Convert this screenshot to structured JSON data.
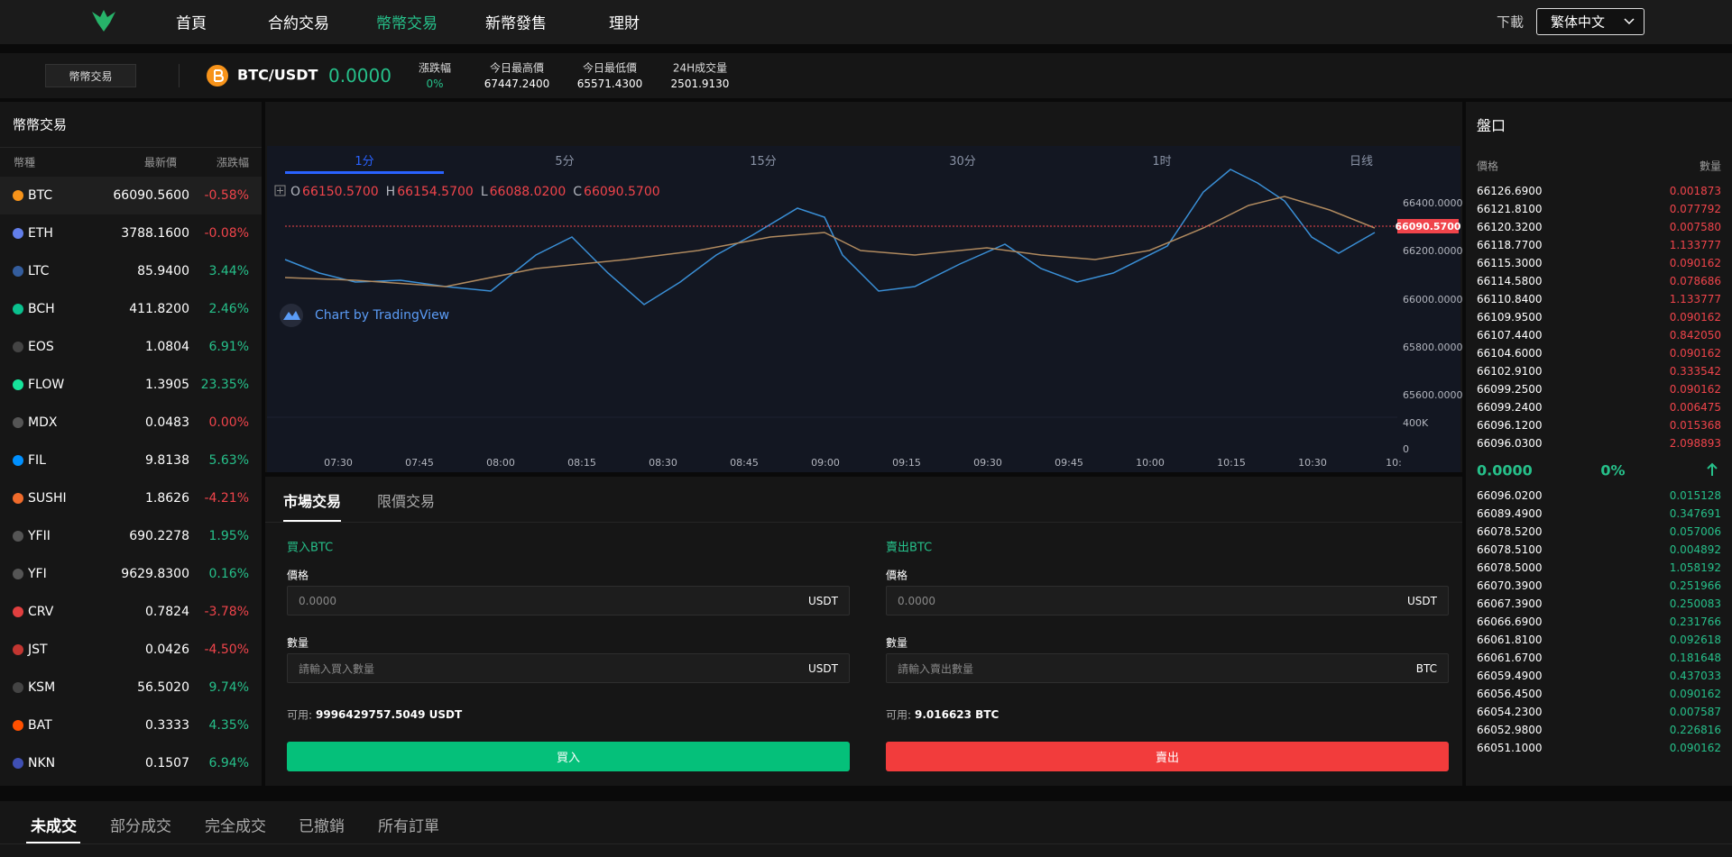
{
  "nav": {
    "items": [
      "首頁",
      "合約交易",
      "幣幣交易",
      "新幣發售",
      "理財"
    ],
    "download": "下載",
    "language": "繁体中文"
  },
  "ticker": {
    "tab": "幣幣交易",
    "pair": "BTC/USDT",
    "price": "0.0000",
    "stats": [
      {
        "label": "漲跌幅",
        "value": "0%"
      },
      {
        "label": "今日最高價",
        "value": "67447.2400"
      },
      {
        "label": "今日最低價",
        "value": "65571.4300"
      },
      {
        "label": "24H成交量",
        "value": "2501.9130"
      }
    ]
  },
  "market_list": {
    "title": "幣幣交易",
    "headers": [
      "幣種",
      "最新價",
      "漲跌幅"
    ],
    "rows": [
      [
        "BTC",
        "66090.5600",
        "-0.58%"
      ],
      [
        "ETH",
        "3788.1600",
        "-0.08%"
      ],
      [
        "LTC",
        "85.9400",
        "3.44%"
      ],
      [
        "BCH",
        "411.8200",
        "2.46%"
      ],
      [
        "EOS",
        "1.0804",
        "6.91%"
      ],
      [
        "FLOW",
        "1.3905",
        "23.35%"
      ],
      [
        "MDX",
        "0.0483",
        "0.00%"
      ],
      [
        "FIL",
        "9.8138",
        "5.63%"
      ],
      [
        "SUSHI",
        "1.8626",
        "-4.21%"
      ],
      [
        "YFII",
        "690.2278",
        "1.95%"
      ],
      [
        "YFI",
        "9629.8300",
        "0.16%"
      ],
      [
        "CRV",
        "0.7824",
        "-3.78%"
      ],
      [
        "JST",
        "0.0426",
        "-4.50%"
      ],
      [
        "KSM",
        "56.5020",
        "9.74%"
      ],
      [
        "BAT",
        "0.3333",
        "4.35%"
      ],
      [
        "NKN",
        "0.1507",
        "6.94%"
      ]
    ]
  },
  "chart": {
    "intervals": [
      "1分",
      "5分",
      "15分",
      "30分",
      "1时",
      "日线"
    ],
    "ohlc": [
      [
        "O",
        "66150.5700"
      ],
      [
        "H",
        "66154.5700"
      ],
      [
        "L",
        "66088.0200"
      ],
      [
        "C",
        "66090.5700"
      ]
    ],
    "price_ticks": [
      "66400.0000",
      "66200.0000",
      "66000.0000",
      "65800.0000",
      "65600.0000"
    ],
    "last_price": "66090.5700",
    "volume_ticks": [
      "400K",
      "0"
    ],
    "time_ticks": [
      "07:30",
      "07:45",
      "08:00",
      "08:15",
      "08:30",
      "08:45",
      "09:00",
      "09:15",
      "09:30",
      "09:45",
      "10:00",
      "10:15",
      "10:30",
      "10:"
    ],
    "watermark": "Chart by TradingView"
  },
  "trade": {
    "tabs": [
      "市場交易",
      "限價交易"
    ],
    "buy": {
      "title": "買入BTC",
      "price_label": "價格",
      "price_placeholder": "0.0000",
      "price_unit": "USDT",
      "amount_label": "數量",
      "amount_placeholder": "請輸入買入數量",
      "amount_unit": "USDT",
      "available_label": "可用:",
      "available": "9996429757.5049 USDT",
      "button": "買入"
    },
    "sell": {
      "title": "賣出BTC",
      "price_label": "價格",
      "price_placeholder": "0.0000",
      "price_unit": "USDT",
      "amount_label": "數量",
      "amount_placeholder": "請輸入賣出數量",
      "amount_unit": "BTC",
      "available_label": "可用:",
      "available": "9.016623 BTC",
      "button": "賣出"
    }
  },
  "order_book": {
    "title": "盤口",
    "headers": [
      "價格",
      "數量"
    ],
    "asks": [
      [
        "66126.6900",
        "0.001873"
      ],
      [
        "66121.8100",
        "0.077792"
      ],
      [
        "66120.3200",
        "0.007580"
      ],
      [
        "66118.7700",
        "1.133777"
      ],
      [
        "66115.3000",
        "0.090162"
      ],
      [
        "66114.5800",
        "0.078686"
      ],
      [
        "66110.8400",
        "1.133777"
      ],
      [
        "66109.9500",
        "0.090162"
      ],
      [
        "66107.4400",
        "0.842050"
      ],
      [
        "66104.6000",
        "0.090162"
      ],
      [
        "66102.9100",
        "0.333542"
      ],
      [
        "66099.2500",
        "0.090162"
      ],
      [
        "66099.2400",
        "0.006475"
      ],
      [
        "66096.1200",
        "0.015368"
      ],
      [
        "66096.0300",
        "2.098893"
      ]
    ],
    "mid": {
      "price": "0.0000",
      "change": "0%"
    },
    "bids": [
      [
        "66096.0200",
        "0.015128"
      ],
      [
        "66089.4900",
        "0.347691"
      ],
      [
        "66078.5200",
        "0.057006"
      ],
      [
        "66078.5100",
        "0.004892"
      ],
      [
        "66078.5000",
        "1.058192"
      ],
      [
        "66070.3900",
        "0.251966"
      ],
      [
        "66067.3900",
        "0.250083"
      ],
      [
        "66066.6900",
        "0.231766"
      ],
      [
        "66061.8100",
        "0.092618"
      ],
      [
        "66061.6700",
        "0.181648"
      ],
      [
        "66059.4900",
        "0.437033"
      ],
      [
        "66056.4500",
        "0.090162"
      ],
      [
        "66054.2300",
        "0.007587"
      ],
      [
        "66052.9800",
        "0.226816"
      ],
      [
        "66051.1000",
        "0.090162"
      ]
    ]
  },
  "orders": {
    "tabs": [
      "未成交",
      "部分成交",
      "完全成交",
      "已撤銷",
      "所有訂單"
    ]
  }
}
